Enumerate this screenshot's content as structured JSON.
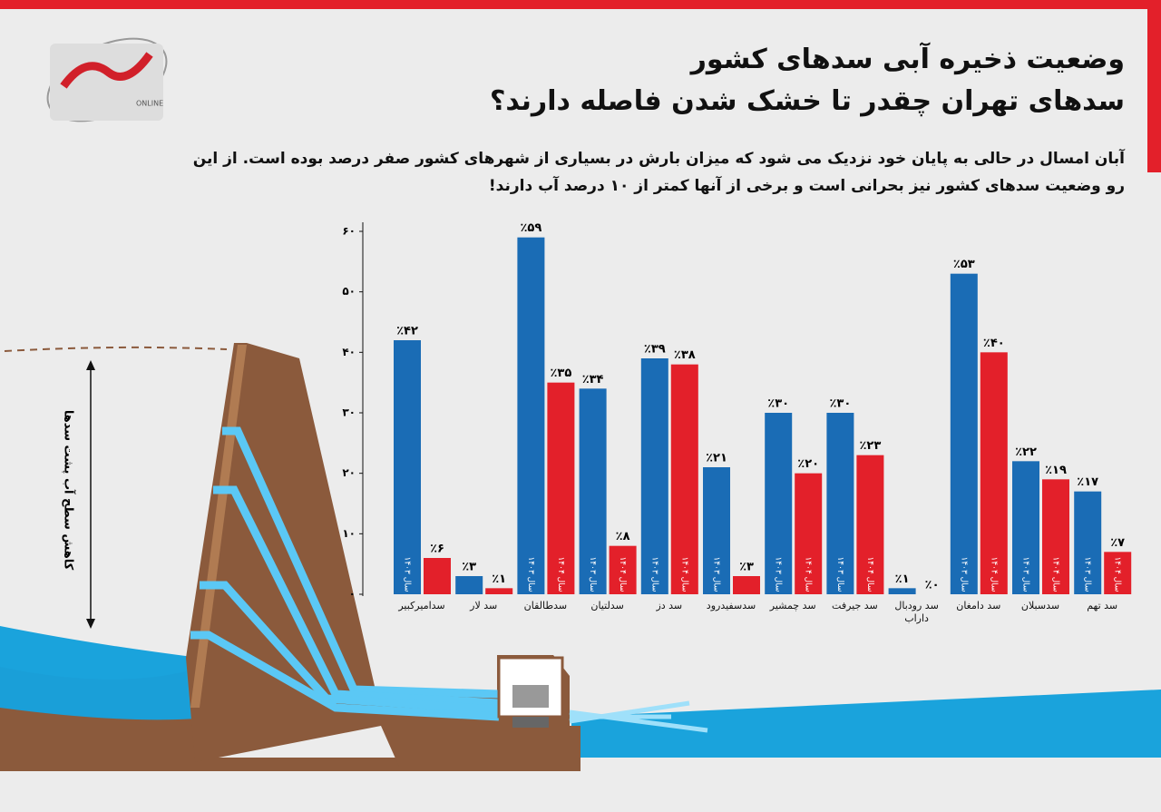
{
  "logo": {
    "text": "ONLINE"
  },
  "header": {
    "title_line1": "وضعیت ذخیره آبی سدهای کشور",
    "title_line2": "سدهای تهران چقدر تا خشک شدن فاصله دارند؟",
    "subtitle": "آبان امسال در حالی به پایان خود نزدیک می شود که میزان بارش در بسیاری از شهرهای کشور صفر درصد بوده است. از این رو وضعیت سدهای کشور نیز بحرانی است و برخی از آنها کمتر از ۱۰ درصد آب دارند!"
  },
  "illustration": {
    "label": "کاهش سطح آب پشت سدها"
  },
  "chart_data": {
    "type": "bar",
    "categories": [
      "سدامیرکبیر",
      "سد لار",
      "سدطالقان",
      "سدلتیان",
      "سد دز",
      "سدسفیدرود",
      "سد چمشیر",
      "سد جیرفت",
      "سد رودبال داراب",
      "سد دامغان",
      "سدسبلان",
      "سد تهم"
    ],
    "series": [
      {
        "name": "سال ۱۴۰۳",
        "color": "#1a6cb5",
        "values": [
          42,
          3,
          59,
          34,
          39,
          21,
          30,
          30,
          1,
          53,
          22,
          17
        ],
        "value_labels": [
          "٪۴۲",
          "٪۳",
          "٪۵۹",
          "٪۳۴",
          "٪۳۹",
          "٪۲۱",
          "٪۳۰",
          "٪۳۰",
          "٪۱",
          "٪۵۳",
          "٪۲۲",
          "٪۱۷"
        ]
      },
      {
        "name": "سال ۱۴۰۴",
        "color": "#e3202a",
        "values": [
          6,
          1,
          35,
          8,
          38,
          3,
          20,
          23,
          0,
          40,
          19,
          7
        ],
        "value_labels": [
          "٪۶",
          "٪۱",
          "٪۳۵",
          "٪۸",
          "٪۳۸",
          "٪۳",
          "٪۲۰",
          "٪۲۳",
          "٪۰",
          "٪۴۰",
          "٪۱۹",
          "٪۷"
        ]
      }
    ],
    "ylim": [
      0,
      60
    ],
    "yticks": [
      {
        "value": 0,
        "label": "٠"
      },
      {
        "value": 10,
        "label": "۱۰"
      },
      {
        "value": 20,
        "label": "۲۰"
      },
      {
        "value": 30,
        "label": "۳۰"
      },
      {
        "value": 40,
        "label": "۴۰"
      },
      {
        "value": 50,
        "label": "۵۰"
      },
      {
        "value": 60,
        "label": "۶۰"
      }
    ]
  }
}
